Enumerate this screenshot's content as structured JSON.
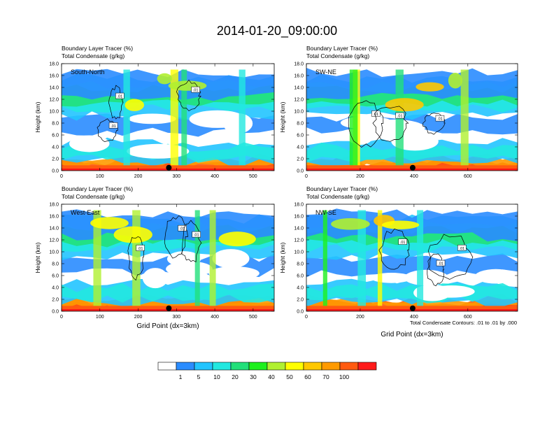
{
  "title": "2014-01-20_09:00:00",
  "footnote": "Total Condensate Contours: .01 to .01 by .000",
  "contour_label": ".01",
  "colorbar": {
    "colors": [
      "#ffffff",
      "#2a8cff",
      "#22c4ff",
      "#22e8e0",
      "#22e07a",
      "#1ef01e",
      "#b0f030",
      "#ffff00",
      "#ffc800",
      "#ff9a00",
      "#ff5a10",
      "#ff1a1a"
    ],
    "labels": [
      "1",
      "5",
      "10",
      "20",
      "30",
      "40",
      "50",
      "60",
      "70",
      "100"
    ]
  },
  "chart_data": [
    {
      "type": "heatmap",
      "panel": "South-North",
      "series_labels": [
        "Boundary Layer Tracer   (%)",
        "Total Condensate   (g/kg)"
      ],
      "ylabel": "Height (km)",
      "xlabel": "",
      "xlim": [
        0,
        555
      ],
      "ylim": [
        0,
        18
      ],
      "xticks": [
        "0",
        "100",
        "200",
        "300",
        "400",
        "500"
      ],
      "yticks": [
        "0.0",
        "2.0",
        "4.0",
        "6.0",
        "8.0",
        "10.0",
        "12.0",
        "14.0",
        "16.0",
        "18.0"
      ],
      "marker_x": 280
    },
    {
      "type": "heatmap",
      "panel": "SW-NE",
      "series_labels": [
        "Boundary Layer Tracer   (%)",
        "Total Condensate   (g/kg)"
      ],
      "ylabel": "Height (km)",
      "xlabel": "",
      "xlim": [
        0,
        785
      ],
      "ylim": [
        0,
        18
      ],
      "xticks": [
        "0",
        "200",
        "400",
        "600"
      ],
      "yticks": [
        "0.0",
        "2.0",
        "4.0",
        "6.0",
        "8.0",
        "10.0",
        "12.0",
        "14.0",
        "16.0",
        "18.0"
      ],
      "marker_x": 395
    },
    {
      "type": "heatmap",
      "panel": "West-East",
      "series_labels": [
        "Boundary Layer Tracer   (%)",
        "Total Condensate   (g/kg)"
      ],
      "ylabel": "Height (km)",
      "xlabel": "Grid Point (dx=3km)",
      "xlim": [
        0,
        555
      ],
      "ylim": [
        0,
        18
      ],
      "xticks": [
        "0",
        "100",
        "200",
        "300",
        "400",
        "500"
      ],
      "yticks": [
        "0.0",
        "2.0",
        "4.0",
        "6.0",
        "8.0",
        "10.0",
        "12.0",
        "14.0",
        "16.0",
        "18.0"
      ],
      "marker_x": 280
    },
    {
      "type": "heatmap",
      "panel": "NW-SE",
      "series_labels": [
        "Boundary Layer Tracer   (%)",
        "Total Condensate   (g/kg)"
      ],
      "ylabel": "Height (km)",
      "xlabel": "Grid Point (dx=3km)",
      "xlim": [
        0,
        785
      ],
      "ylim": [
        0,
        18
      ],
      "xticks": [
        "0",
        "200",
        "400",
        "600"
      ],
      "yticks": [
        "0.0",
        "2.0",
        "4.0",
        "6.0",
        "8.0",
        "10.0",
        "12.0",
        "14.0",
        "16.0",
        "18.0"
      ],
      "marker_x": 395
    }
  ]
}
